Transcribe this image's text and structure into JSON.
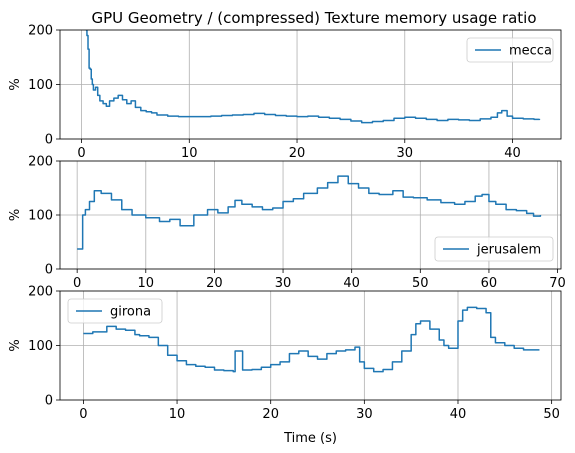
{
  "chart_data": {
    "type": "line",
    "title": "GPU Geometry / (compressed) Texture memory usage ratio",
    "color": "#1f77b4",
    "grid": true,
    "subplots": [
      {
        "ylabel": "%",
        "xlabel": "",
        "xlim": [
          -2,
          44.5
        ],
        "ylim": [
          0,
          200
        ],
        "xticks": [
          0,
          10,
          20,
          30,
          40
        ],
        "yticks": [
          0,
          100,
          200
        ],
        "legend_position": "top-right",
        "series": [
          {
            "name": "mecca",
            "x": [
              0.4,
              0.5,
              0.6,
              0.7,
              0.8,
              0.9,
              1.0,
              1.1,
              1.3,
              1.5,
              1.7,
              2.0,
              2.3,
              2.6,
              3.0,
              3.4,
              3.8,
              4.2,
              4.6,
              5.0,
              5.5,
              6.0,
              6.5,
              7.0,
              8.0,
              9.0,
              10.0,
              11.0,
              12.0,
              13.0,
              14.0,
              15.0,
              16.0,
              17.0,
              18.0,
              19.0,
              20.0,
              21.0,
              22.0,
              23.0,
              24.0,
              25.0,
              26.0,
              27.0,
              28.0,
              29.0,
              30.0,
              31.0,
              32.0,
              33.0,
              34.0,
              35.0,
              36.0,
              37.0,
              38.0,
              38.6,
              39.0,
              39.5,
              40.0,
              41.0,
              42.0,
              42.5
            ],
            "y": [
              200,
              190,
              165,
              130,
              128,
              110,
              100,
              90,
              95,
              80,
              70,
              65,
              60,
              70,
              75,
              80,
              72,
              65,
              70,
              58,
              52,
              50,
              48,
              44,
              42,
              41,
              41,
              41,
              42,
              43,
              44,
              45,
              47,
              45,
              43,
              42,
              41,
              42,
              40,
              38,
              36,
              33,
              30,
              32,
              34,
              38,
              40,
              38,
              36,
              34,
              36,
              35,
              34,
              37,
              40,
              48,
              52,
              42,
              38,
              37,
              36,
              37
            ]
          }
        ]
      },
      {
        "ylabel": "%",
        "xlabel": "",
        "xlim": [
          -2.5,
          70.5
        ],
        "ylim": [
          0,
          200
        ],
        "xticks": [
          0,
          10,
          20,
          30,
          40,
          50,
          60,
          70
        ],
        "yticks": [
          0,
          100,
          200
        ],
        "legend_position": "lower-right",
        "series": [
          {
            "name": "jerusalem",
            "x": [
              0,
              0.5,
              0.8,
              1.2,
              1.8,
              2.5,
              3.5,
              5,
              6.5,
              8,
              10,
              12,
              13.5,
              15,
              17,
              19,
              20.5,
              22,
              23,
              24,
              25.5,
              27,
              28.5,
              30,
              31.5,
              33,
              35,
              36.5,
              38,
              39.5,
              41,
              42.5,
              44,
              46,
              47.5,
              49,
              51,
              53,
              55,
              56.5,
              58,
              59,
              60,
              61,
              62.5,
              64,
              65.5,
              66.5,
              67.5
            ],
            "y": [
              37,
              37,
              100,
              110,
              125,
              145,
              140,
              128,
              110,
              100,
              95,
              88,
              92,
              80,
              100,
              110,
              104,
              115,
              127,
              120,
              115,
              110,
              113,
              125,
              130,
              140,
              150,
              160,
              172,
              158,
              150,
              140,
              138,
              145,
              133,
              132,
              128,
              123,
              120,
              125,
              135,
              138,
              125,
              120,
              110,
              108,
              103,
              98,
              100
            ]
          }
        ]
      },
      {
        "ylabel": "%",
        "xlabel": "Time (s)",
        "xlim": [
          -2.5,
          51
        ],
        "ylim": [
          0,
          200
        ],
        "xticks": [
          0,
          10,
          20,
          30,
          40,
          50
        ],
        "yticks": [
          0,
          100,
          200
        ],
        "legend_position": "top-left",
        "series": [
          {
            "name": "girona",
            "x": [
              0,
              0.8,
              1.0,
              2.5,
              3.5,
              4.5,
              5.5,
              6.0,
              7.0,
              8.0,
              9.0,
              10.0,
              11.0,
              12.0,
              13.0,
              14.0,
              15.0,
              16.0,
              16.2,
              17.0,
              18.0,
              19.0,
              20.0,
              21.0,
              22.0,
              23.0,
              24.0,
              25.0,
              26.0,
              27.0,
              28.0,
              29.0,
              29.5,
              30.0,
              31.0,
              32.0,
              33.0,
              34.0,
              35.0,
              35.5,
              36.0,
              37.0,
              38.0,
              38.5,
              39.0,
              40.0,
              40.5,
              41.0,
              42.0,
              43.0,
              43.5,
              44.0,
              45.0,
              46.0,
              47.0,
              48.0,
              48.7
            ],
            "y": [
              122,
              122,
              125,
              135,
              130,
              128,
              120,
              118,
              115,
              100,
              82,
              72,
              65,
              62,
              60,
              55,
              54,
              52,
              90,
              55,
              56,
              60,
              65,
              70,
              85,
              90,
              80,
              75,
              85,
              90,
              92,
              97,
              70,
              58,
              52,
              56,
              70,
              90,
              120,
              140,
              145,
              130,
              110,
              100,
              95,
              145,
              165,
              170,
              168,
              160,
              115,
              105,
              100,
              95,
              92,
              92,
              92
            ]
          }
        ]
      }
    ]
  }
}
